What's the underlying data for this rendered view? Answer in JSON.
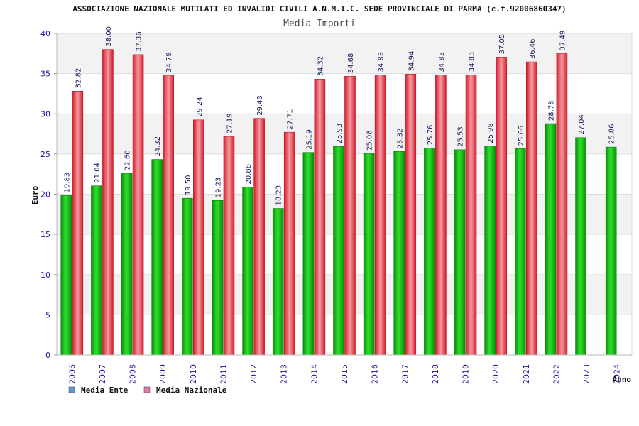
{
  "header": {
    "title": "ASSOCIAZIONE NAZIONALE MUTILATI ED INVALIDI CIVILI A.N.M.I.C. SEDE PROVINCIALE DI PARMA (c.f.92006860347)",
    "subtitle": "Media Importi"
  },
  "colors": {
    "ente": "#14b814",
    "nazionale": "#e8303a",
    "axis_text": "#1a1aa0",
    "band": "#f2f2f2",
    "legend_ente": "#5b9bd5",
    "legend_nazionale": "#e377a8"
  },
  "chart_data": {
    "type": "bar",
    "title": "Media Importi",
    "xlabel": "Anno",
    "ylabel": "Euro",
    "ylim": [
      0,
      40
    ],
    "yticks": [
      0,
      5,
      10,
      15,
      20,
      25,
      30,
      35,
      40
    ],
    "categories": [
      "2006",
      "2007",
      "2008",
      "2009",
      "2010",
      "2011",
      "2012",
      "2013",
      "2014",
      "2015",
      "2016",
      "2017",
      "2018",
      "2019",
      "2020",
      "2021",
      "2022",
      "2023",
      "2024"
    ],
    "series": [
      {
        "name": "Media Ente",
        "values": [
          19.83,
          21.04,
          22.6,
          24.32,
          19.5,
          19.23,
          20.88,
          18.23,
          25.19,
          25.93,
          25.08,
          25.32,
          25.76,
          25.53,
          25.98,
          25.66,
          28.78,
          27.04,
          25.86
        ],
        "labels": [
          "19.83",
          "21.04",
          "22.60",
          "24.32",
          "19.50",
          "19.23",
          "20.88",
          "18.23",
          "25.19",
          "25.93",
          "25.08",
          "25.32",
          "25.76",
          "25.53",
          "25.98",
          "25.66",
          "28.78",
          "27.04",
          "25.86"
        ]
      },
      {
        "name": "Media Nazionale",
        "values": [
          32.82,
          38.0,
          37.36,
          34.79,
          29.24,
          27.19,
          29.43,
          27.71,
          34.32,
          34.68,
          34.83,
          34.94,
          34.83,
          34.85,
          37.05,
          36.46,
          37.49,
          null,
          null
        ],
        "labels": [
          "32.82",
          "38.00",
          "37.36",
          "34.79",
          "29.24",
          "27.19",
          "29.43",
          "27.71",
          "34.32",
          "34.68",
          "34.83",
          "34.94",
          "34.83",
          "34.85",
          "37.05",
          "36.46",
          "37.49",
          "",
          ""
        ]
      }
    ],
    "grid": true,
    "legend": "bottom-left"
  }
}
